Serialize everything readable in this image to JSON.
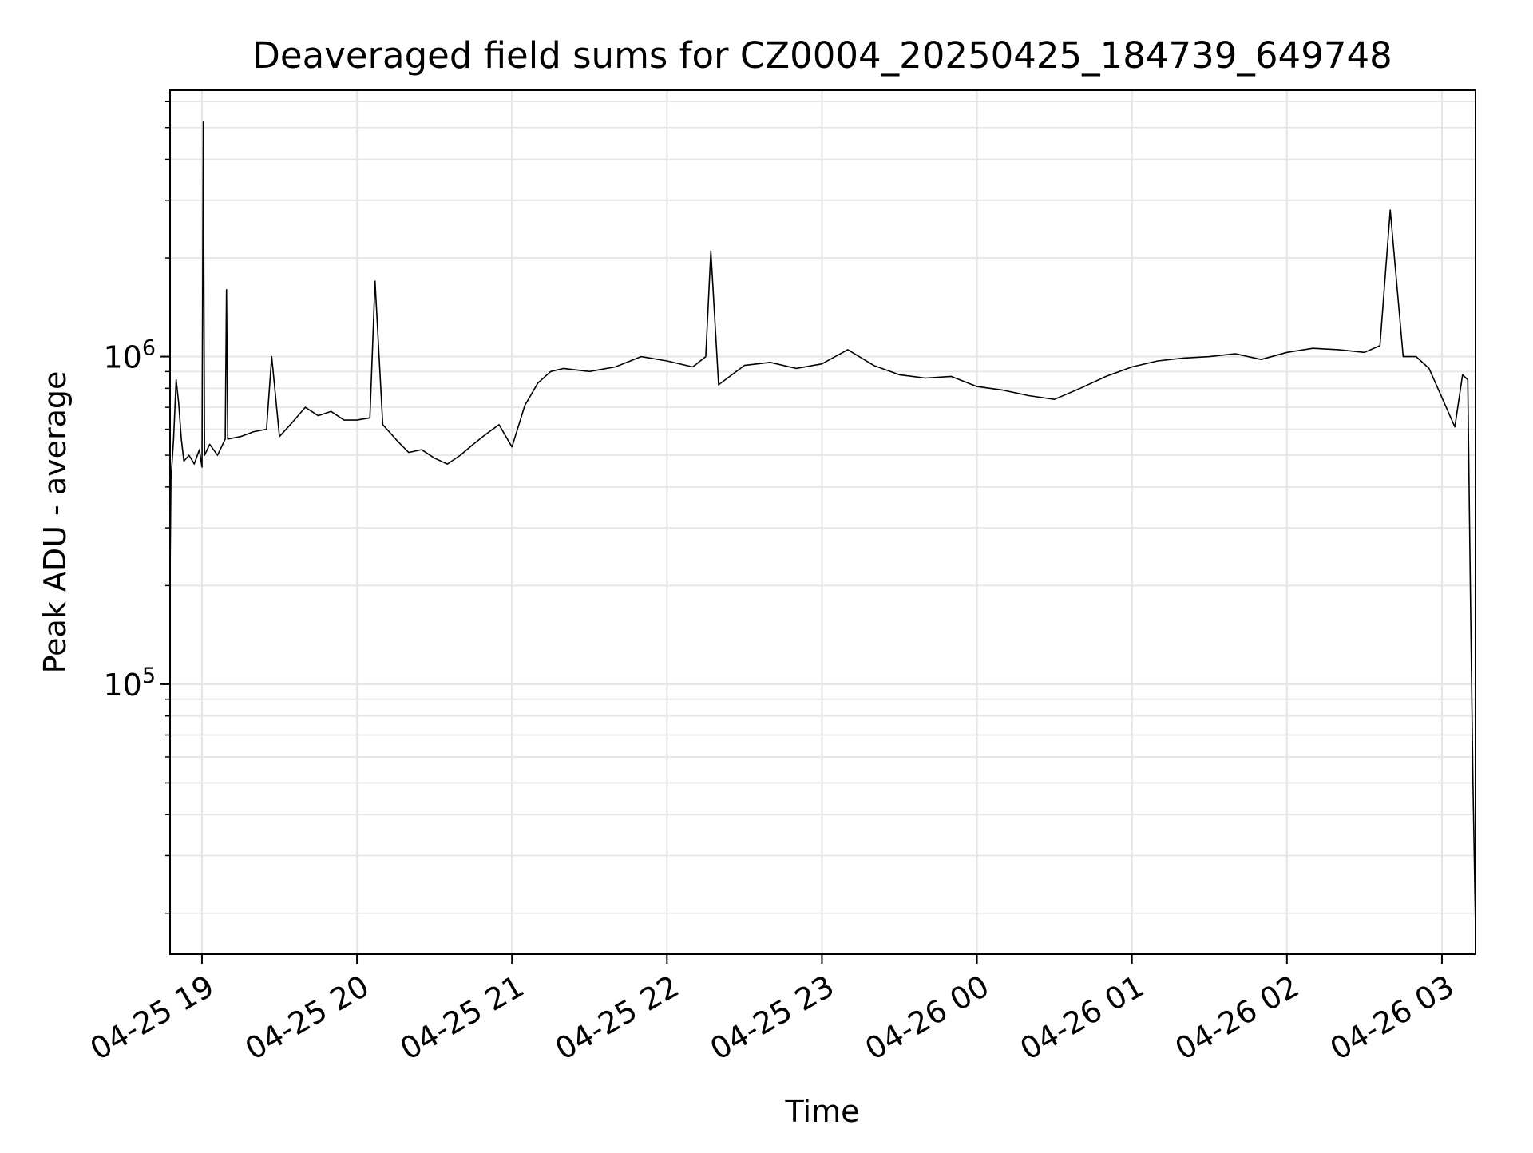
{
  "chart_data": {
    "type": "line",
    "title": "Deaveraged field sums for CZ0004_20250425_184739_649748",
    "xlabel": "Time",
    "ylabel": "Peak ADU - average",
    "x_axis": "datetime",
    "x_range": [
      "2025-04-25 18:47:39",
      "2025-04-26 03:13:00"
    ],
    "x_ticks": [
      "04-25 19",
      "04-25 20",
      "04-25 21",
      "04-25 22",
      "04-25 23",
      "04-26 00",
      "04-26 01",
      "04-26 02",
      "04-26 03"
    ],
    "y_scale": "log",
    "ylim": [
      15000,
      6500000
    ],
    "y_tick_base": "10",
    "y_ticks": [
      {
        "value": 100000,
        "exponent": "5"
      },
      {
        "value": 1000000,
        "exponent": "6"
      }
    ],
    "grid": true,
    "line_color": "#000000",
    "grid_color": "#e6e6e6",
    "series": [
      {
        "x": [
          "2025-04-25 18:47:39",
          "2025-04-25 18:48:00",
          "2025-04-25 18:49:00",
          "2025-04-25 18:50:00",
          "2025-04-25 18:51:00",
          "2025-04-25 18:52:00",
          "2025-04-25 18:53:00",
          "2025-04-25 18:55:00",
          "2025-04-25 18:57:00",
          "2025-04-25 18:59:00",
          "2025-04-25 19:00:00",
          "2025-04-25 19:00:30",
          "2025-04-25 19:01:00",
          "2025-04-25 19:03:00",
          "2025-04-25 19:06:00",
          "2025-04-25 19:09:00",
          "2025-04-25 19:09:30",
          "2025-04-25 19:10:00",
          "2025-04-25 19:15:00",
          "2025-04-25 19:20:00",
          "2025-04-25 19:25:00",
          "2025-04-25 19:27:00",
          "2025-04-25 19:30:00",
          "2025-04-25 19:35:00",
          "2025-04-25 19:40:00",
          "2025-04-25 19:45:00",
          "2025-04-25 19:50:00",
          "2025-04-25 19:55:00",
          "2025-04-25 20:00:00",
          "2025-04-25 20:05:00",
          "2025-04-25 20:07:00",
          "2025-04-25 20:10:00",
          "2025-04-25 20:15:00",
          "2025-04-25 20:20:00",
          "2025-04-25 20:25:00",
          "2025-04-25 20:30:00",
          "2025-04-25 20:35:00",
          "2025-04-25 20:40:00",
          "2025-04-25 20:45:00",
          "2025-04-25 20:50:00",
          "2025-04-25 20:55:00",
          "2025-04-25 21:00:00",
          "2025-04-25 21:05:00",
          "2025-04-25 21:10:00",
          "2025-04-25 21:15:00",
          "2025-04-25 21:20:00",
          "2025-04-25 21:30:00",
          "2025-04-25 21:40:00",
          "2025-04-25 21:50:00",
          "2025-04-25 22:00:00",
          "2025-04-25 22:10:00",
          "2025-04-25 22:15:00",
          "2025-04-25 22:17:00",
          "2025-04-25 22:20:00",
          "2025-04-25 22:30:00",
          "2025-04-25 22:40:00",
          "2025-04-25 22:50:00",
          "2025-04-25 23:00:00",
          "2025-04-25 23:10:00",
          "2025-04-25 23:20:00",
          "2025-04-25 23:30:00",
          "2025-04-25 23:40:00",
          "2025-04-25 23:50:00",
          "2025-04-26 00:00:00",
          "2025-04-26 00:10:00",
          "2025-04-26 00:20:00",
          "2025-04-26 00:30:00",
          "2025-04-26 00:40:00",
          "2025-04-26 00:50:00",
          "2025-04-26 01:00:00",
          "2025-04-26 01:10:00",
          "2025-04-26 01:20:00",
          "2025-04-26 01:30:00",
          "2025-04-26 01:40:00",
          "2025-04-26 01:50:00",
          "2025-04-26 02:00:00",
          "2025-04-26 02:10:00",
          "2025-04-26 02:20:00",
          "2025-04-26 02:30:00",
          "2025-04-26 02:36:00",
          "2025-04-26 02:40:00",
          "2025-04-26 02:45:00",
          "2025-04-26 02:50:00",
          "2025-04-26 02:55:00",
          "2025-04-26 03:00:00",
          "2025-04-26 03:05:00",
          "2025-04-26 03:08:00",
          "2025-04-26 03:10:00",
          "2025-04-26 03:11:00",
          "2025-04-26 03:12:00",
          "2025-04-26 03:13:00"
        ],
        "y": [
          210000,
          420000,
          560000,
          850000,
          720000,
          560000,
          480000,
          500000,
          470000,
          520000,
          460000,
          5200000,
          500000,
          540000,
          500000,
          560000,
          1600000,
          560000,
          570000,
          590000,
          600000,
          1000000,
          570000,
          630000,
          700000,
          660000,
          680000,
          640000,
          640000,
          650000,
          1700000,
          620000,
          560000,
          510000,
          520000,
          490000,
          470000,
          500000,
          540000,
          580000,
          620000,
          530000,
          710000,
          830000,
          900000,
          920000,
          900000,
          930000,
          1000000,
          970000,
          930000,
          1000000,
          2100000,
          820000,
          940000,
          960000,
          920000,
          950000,
          1050000,
          940000,
          880000,
          860000,
          870000,
          810000,
          790000,
          760000,
          740000,
          800000,
          870000,
          930000,
          970000,
          990000,
          1000000,
          1020000,
          980000,
          1030000,
          1060000,
          1050000,
          1030000,
          1080000,
          2800000,
          1000000,
          1000000,
          920000,
          750000,
          610000,
          880000,
          850000,
          200000,
          50000,
          18000
        ]
      }
    ]
  }
}
